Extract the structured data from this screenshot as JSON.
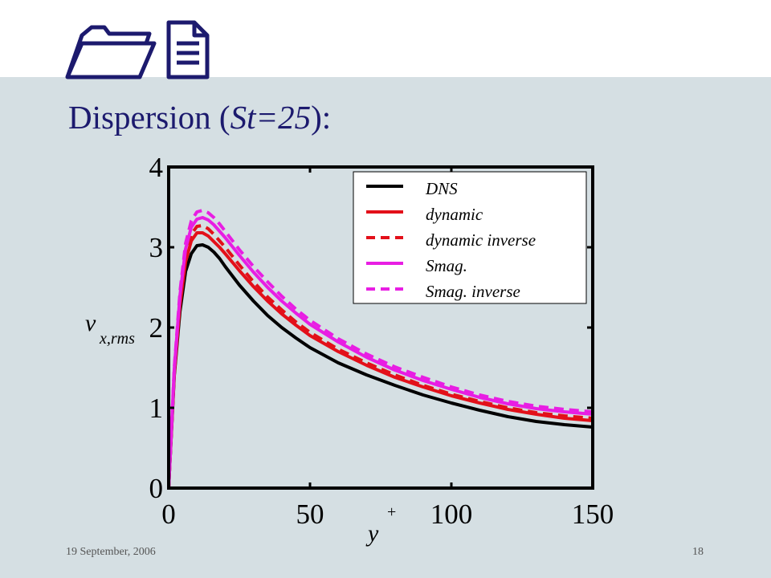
{
  "slide": {
    "title_prefix": "Dispersion (",
    "title_italic": "St=25",
    "title_suffix": "):",
    "footer_date": "19 September, 2006",
    "page_number": "18",
    "logo_icons": [
      "folder-icon",
      "document-icon"
    ]
  },
  "chart_data": {
    "type": "line",
    "xlabel": "y",
    "xlabel_sup": "+",
    "ylabel": "v",
    "ylabel_sub": "x,rms",
    "xlim": [
      0,
      150
    ],
    "ylim": [
      0,
      4
    ],
    "xticks": [
      "0",
      "50",
      "100",
      "150"
    ],
    "yticks": [
      "0",
      "1",
      "2",
      "3",
      "4"
    ],
    "grid": false,
    "legend_position": "top-right",
    "x": [
      0,
      2,
      4,
      6,
      8,
      10,
      12,
      14,
      16,
      18,
      20,
      25,
      30,
      35,
      40,
      45,
      50,
      60,
      70,
      80,
      90,
      100,
      110,
      120,
      130,
      140,
      150
    ],
    "series": [
      {
        "name": "DNS",
        "color": "#000000",
        "dash": "solid",
        "values": [
          0,
          1.4,
          2.2,
          2.7,
          2.92,
          3.02,
          3.03,
          3.0,
          2.94,
          2.86,
          2.76,
          2.53,
          2.33,
          2.15,
          2.0,
          1.87,
          1.75,
          1.56,
          1.41,
          1.28,
          1.16,
          1.06,
          0.97,
          0.89,
          0.83,
          0.79,
          0.76
        ]
      },
      {
        "name": "dynamic",
        "color": "#e3101a",
        "dash": "solid",
        "values": [
          0,
          1.42,
          2.28,
          2.82,
          3.08,
          3.18,
          3.18,
          3.14,
          3.07,
          3.0,
          2.92,
          2.71,
          2.51,
          2.33,
          2.17,
          2.03,
          1.9,
          1.7,
          1.53,
          1.38,
          1.26,
          1.15,
          1.06,
          0.98,
          0.92,
          0.87,
          0.84
        ]
      },
      {
        "name": "dynamic inverse",
        "color": "#e3101a",
        "dash": "dashed",
        "values": [
          0,
          1.45,
          2.32,
          2.88,
          3.16,
          3.26,
          3.27,
          3.23,
          3.16,
          3.08,
          3.0,
          2.78,
          2.57,
          2.38,
          2.22,
          2.07,
          1.94,
          1.73,
          1.56,
          1.41,
          1.28,
          1.17,
          1.08,
          1.0,
          0.94,
          0.9,
          0.87
        ]
      },
      {
        "name": "Smag.",
        "color": "#e81ee3",
        "dash": "solid",
        "values": [
          0,
          1.48,
          2.4,
          2.98,
          3.25,
          3.35,
          3.37,
          3.34,
          3.28,
          3.2,
          3.12,
          2.9,
          2.69,
          2.5,
          2.33,
          2.18,
          2.04,
          1.82,
          1.63,
          1.47,
          1.34,
          1.23,
          1.13,
          1.05,
          0.99,
          0.95,
          0.92
        ]
      },
      {
        "name": "Smag. inverse",
        "color": "#e81ee3",
        "dash": "dashed",
        "values": [
          0,
          1.5,
          2.45,
          3.05,
          3.33,
          3.44,
          3.46,
          3.43,
          3.37,
          3.29,
          3.2,
          2.97,
          2.76,
          2.57,
          2.39,
          2.23,
          2.09,
          1.86,
          1.67,
          1.51,
          1.38,
          1.26,
          1.16,
          1.08,
          1.02,
          0.98,
          0.95
        ]
      }
    ]
  }
}
